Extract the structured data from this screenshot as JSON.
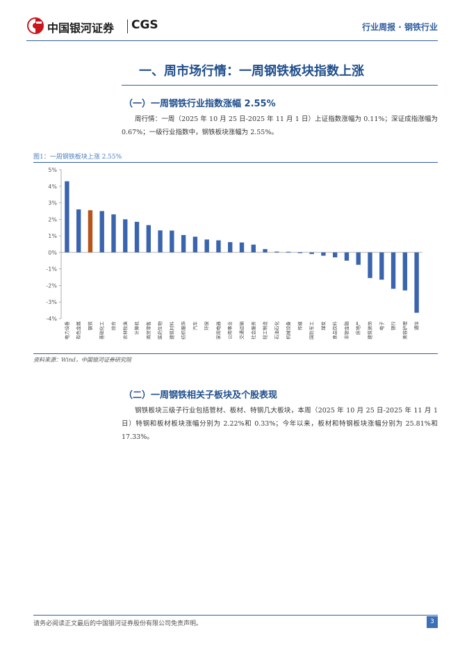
{
  "header": {
    "brand_cn": "中国银河证券",
    "brand_en": "CGS",
    "report_type": "行业周报 · 钢铁行业"
  },
  "section": {
    "title": "一、周市场行情：一周钢铁板块指数上涨"
  },
  "subsection_1": {
    "title": "（一）一周钢铁行业指数涨幅 2.55%",
    "paragraph": "周行情：一周（2025 年 10 月 25 日-2025 年 11 月 1 日）上证指数涨幅为 0.11%；深证成指涨幅为 0.67%；一级行业指数中，钢铁板块涨幅为 2.55%。"
  },
  "figure": {
    "title": "图1：一周钢铁板块上涨 2.55%",
    "source": "资料来源：Wind，中国银河证券研究院"
  },
  "chart_data": {
    "type": "bar",
    "title": "",
    "xlabel": "",
    "ylabel": "",
    "ylim": [
      -4,
      5
    ],
    "yticks": [
      "5%",
      "4%",
      "3%",
      "2%",
      "1%",
      "0%",
      "-1%",
      "-2%",
      "-3%",
      "-4%"
    ],
    "grid": false,
    "bar_color": "#3a64ae",
    "highlight_color": "#b5541c",
    "highlight_category": "钢铁",
    "categories": [
      "电力设备",
      "有色金属",
      "钢铁",
      "基础化工",
      "综合",
      "农林牧渔",
      "计算机",
      "商贸零售",
      "医药生物",
      "建筑材料",
      "纺织服饰",
      "汽车",
      "环保",
      "家用电器",
      "公用事业",
      "交通运输",
      "社会服务",
      "轻工制造",
      "石油石化",
      "机械设备",
      "传媒",
      "国防军工",
      "煤炭",
      "食品饮料",
      "非银金融",
      "房地产",
      "建筑装饰",
      "电子",
      "银行",
      "美容护理",
      "通信"
    ],
    "values": [
      4.3,
      2.6,
      2.55,
      2.5,
      2.3,
      2.0,
      1.85,
      1.65,
      1.33,
      1.32,
      1.05,
      0.95,
      0.78,
      0.73,
      0.62,
      0.6,
      0.47,
      0.2,
      0.05,
      0.04,
      -0.05,
      -0.1,
      -0.2,
      -0.3,
      -0.5,
      -0.75,
      -1.55,
      -1.65,
      -2.2,
      -2.3,
      -3.65
    ]
  },
  "subsection_2": {
    "title": "（二）一周钢铁相关子板块及个股表现",
    "paragraph": "钢铁板块三级子行业包括管材、板材、特钢几大板块，本周（2025 年 10 月 25 日-2025 年 11 月 1 日）特钢和板材板块涨幅分别为 2.22%和 0.33%；今年以来，板材和特钢板块涨幅分别为 25.81%和 17.33%。"
  },
  "footer": {
    "disclaimer": "请务必阅读正文最后的中国银河证券股份有限公司免责声明。",
    "page_number": "3"
  }
}
